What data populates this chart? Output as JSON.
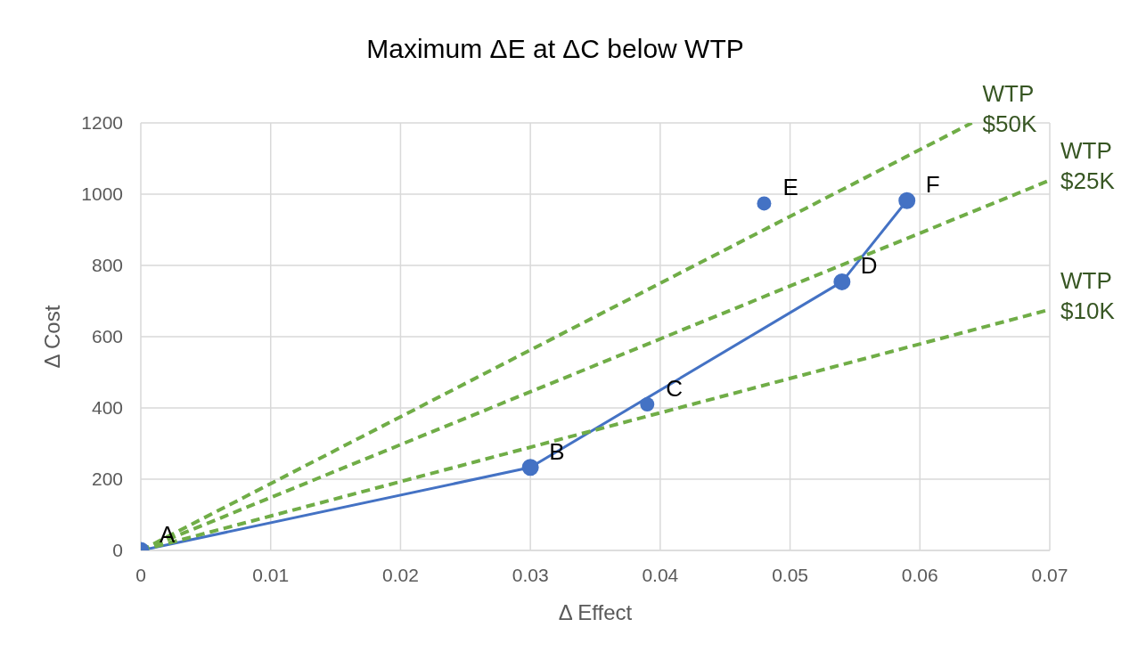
{
  "chart_data": {
    "type": "line",
    "title": "Maximum ΔE at ΔC below WTP",
    "xlabel": "Δ Effect",
    "ylabel": "Δ Cost",
    "xlim": [
      0,
      0.07
    ],
    "xticks": [
      0,
      0.01,
      0.02,
      0.03,
      0.04,
      0.05,
      0.06,
      0.07
    ],
    "ylim": [
      0,
      1200
    ],
    "yticks": [
      0,
      200,
      400,
      600,
      800,
      1000,
      1200
    ],
    "grid": true,
    "legend": false,
    "series": [
      {
        "color": "#4472c4",
        "marker": "circle",
        "line_style": "solid",
        "x": [
          0,
          0.03,
          0.054,
          0.059
        ],
        "values": [
          0,
          233,
          754,
          982
        ]
      },
      {
        "type": "scatter",
        "color": "#4472c4",
        "marker": "circle",
        "x": [
          0.039,
          0.048
        ],
        "values": [
          410,
          974
        ]
      },
      {
        "name": "WTP $50K",
        "color": "#70ad47",
        "marker": "none",
        "line_style": "dashed",
        "x": [
          0,
          0.064
        ],
        "values": [
          0,
          1200
        ]
      },
      {
        "name": "WTP $25K",
        "color": "#70ad47",
        "marker": "none",
        "line_style": "dashed",
        "x": [
          0,
          0.07
        ],
        "values": [
          0,
          1039
        ]
      },
      {
        "name": "WTP $10K",
        "color": "#70ad47",
        "marker": "none",
        "line_style": "dashed",
        "x": [
          0,
          0.07
        ],
        "values": [
          0,
          676
        ]
      }
    ],
    "annotations": [
      {
        "text": "A",
        "x": 0,
        "y": 0
      },
      {
        "text": "B",
        "x": 0.03,
        "y": 233
      },
      {
        "text": "C",
        "x": 0.039,
        "y": 410
      },
      {
        "text": "D",
        "x": 0.054,
        "y": 754
      },
      {
        "text": "E",
        "x": 0.048,
        "y": 974
      },
      {
        "text": "F",
        "x": 0.059,
        "y": 982
      }
    ]
  }
}
